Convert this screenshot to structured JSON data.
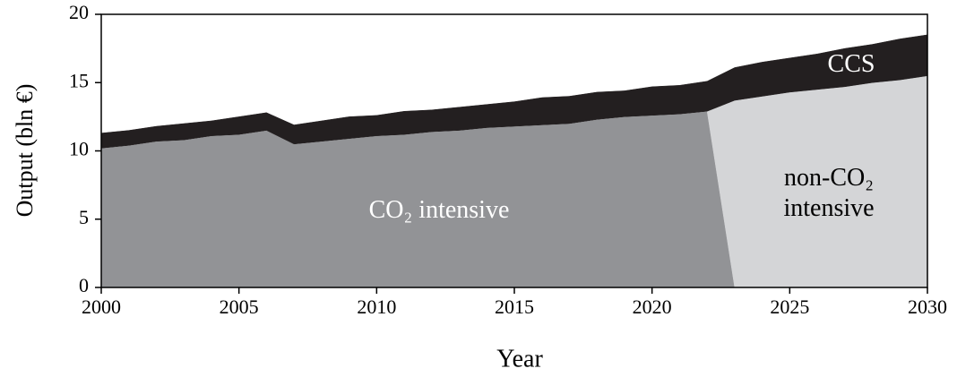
{
  "chart_data": {
    "type": "area",
    "stacked": true,
    "x_label": "Year",
    "y_label": "Output (bln €)",
    "x": [
      2000,
      2001,
      2002,
      2003,
      2004,
      2005,
      2006,
      2007,
      2008,
      2009,
      2010,
      2011,
      2012,
      2013,
      2014,
      2015,
      2016,
      2017,
      2018,
      2019,
      2020,
      2021,
      2022,
      2023,
      2024,
      2025,
      2026,
      2027,
      2028,
      2029,
      2030
    ],
    "series": [
      {
        "name": "CO₂ intensive",
        "color": "#929396",
        "values": [
          10.2,
          10.4,
          10.7,
          10.8,
          11.1,
          11.2,
          11.5,
          10.5,
          10.7,
          10.9,
          11.1,
          11.2,
          11.4,
          11.5,
          11.7,
          11.8,
          11.9,
          12.0,
          12.3,
          12.5,
          12.6,
          12.7,
          12.9,
          0,
          0,
          0,
          0,
          0,
          0,
          0,
          0
        ]
      },
      {
        "name": "non-CO₂ intensive",
        "color": "#d4d5d7",
        "values": [
          0,
          0,
          0,
          0,
          0,
          0,
          0,
          0,
          0,
          0,
          0,
          0,
          0,
          0,
          0,
          0,
          0,
          0,
          0,
          0,
          0,
          0,
          0,
          13.7,
          14.0,
          14.3,
          14.5,
          14.7,
          15.0,
          15.2,
          15.5
        ]
      },
      {
        "name": "CCS",
        "color": "#231f20",
        "values": [
          1.1,
          1.1,
          1.1,
          1.2,
          1.1,
          1.3,
          1.3,
          1.4,
          1.5,
          1.6,
          1.5,
          1.7,
          1.6,
          1.7,
          1.7,
          1.8,
          2.0,
          2.0,
          2.0,
          1.9,
          2.1,
          2.1,
          2.2,
          2.4,
          2.5,
          2.5,
          2.6,
          2.8,
          2.8,
          3.0,
          3.0
        ]
      }
    ],
    "xlim": [
      2000,
      2030
    ],
    "xticks": [
      2000,
      2005,
      2010,
      2015,
      2020,
      2025,
      2030
    ],
    "ylim": [
      0,
      20
    ],
    "yticks": [
      0,
      5,
      10,
      15,
      20
    ]
  }
}
